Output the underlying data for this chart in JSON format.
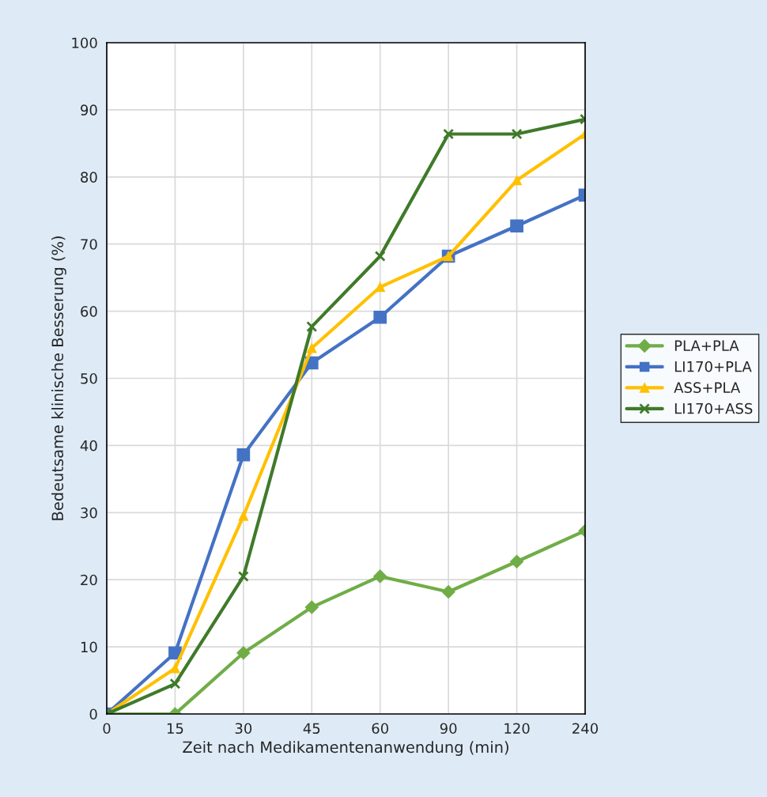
{
  "chart_data": {
    "type": "line",
    "xlabel": "Zeit nach Medikamentenanwendung (min)",
    "ylabel": "Bedeutsame klinische Besserung (%)",
    "categories": [
      "0",
      "15",
      "30",
      "45",
      "60",
      "90",
      "120",
      "240"
    ],
    "series": [
      {
        "name": "PLA+PLA",
        "color": "#70ad47",
        "marker": "diamond",
        "values": [
          0,
          0,
          9.1,
          15.9,
          20.5,
          18.2,
          22.7,
          27.3
        ]
      },
      {
        "name": "LI170+PLA",
        "color": "#4472c4",
        "marker": "square",
        "values": [
          0,
          9.1,
          38.6,
          52.3,
          59.1,
          68.2,
          72.7,
          77.3
        ]
      },
      {
        "name": "ASS+PLA",
        "color": "#ffc000",
        "marker": "triangle",
        "values": [
          0,
          6.8,
          29.5,
          54.5,
          63.6,
          68.2,
          79.5,
          86.4
        ]
      },
      {
        "name": "LI170+ASS",
        "color": "#3f7a2a",
        "marker": "cross",
        "values": [
          0,
          4.5,
          20.5,
          57.7,
          68.2,
          86.4,
          86.4,
          88.6
        ]
      }
    ],
    "ylim": [
      0,
      100
    ],
    "yticks": [
      0,
      10,
      20,
      30,
      40,
      50,
      60,
      70,
      80,
      90,
      100
    ],
    "grid": true,
    "legend": "right",
    "line_style": "solid"
  }
}
